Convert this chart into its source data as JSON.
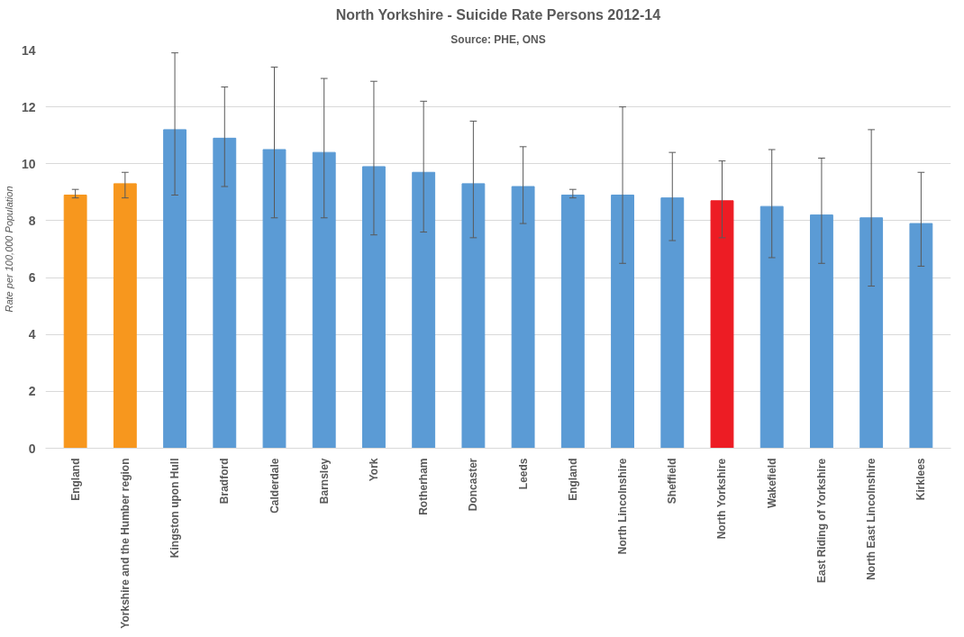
{
  "chart_data": {
    "type": "bar",
    "title": "North Yorkshire - Suicide Rate Persons 2012-14",
    "subtitle": "Source: PHE, ONS",
    "ylabel": "Rate per 100,000 Population",
    "categories": [
      "England",
      "Yorkshire and the Humber region",
      "Kingston upon Hull",
      "Bradford",
      "Calderdale",
      "Barnsley",
      "York",
      "Rotherham",
      "Doncaster",
      "Leeds",
      "England",
      "North Lincolnshire",
      "Sheffield",
      "North Yorkshire",
      "Wakefield",
      "East Riding of Yorkshire",
      "North East Lincolnshire",
      "Kirklees"
    ],
    "values": [
      8.9,
      9.3,
      11.2,
      10.9,
      10.5,
      10.4,
      9.9,
      9.7,
      9.3,
      9.2,
      8.9,
      8.9,
      8.8,
      8.7,
      8.5,
      8.2,
      8.1,
      7.9
    ],
    "colors": [
      "#f7971e",
      "#f7971e",
      "#5b9bd5",
      "#5b9bd5",
      "#5b9bd5",
      "#5b9bd5",
      "#5b9bd5",
      "#5b9bd5",
      "#5b9bd5",
      "#5b9bd5",
      "#5b9bd5",
      "#5b9bd5",
      "#5b9bd5",
      "#ed1c24",
      "#5b9bd5",
      "#5b9bd5",
      "#5b9bd5",
      "#5b9bd5"
    ],
    "errors": [
      [
        8.8,
        9.1
      ],
      [
        8.8,
        9.7
      ],
      [
        8.9,
        13.9
      ],
      [
        9.2,
        12.7
      ],
      [
        8.1,
        13.4
      ],
      [
        8.1,
        13.0
      ],
      [
        7.5,
        12.9
      ],
      [
        7.6,
        12.2
      ],
      [
        7.4,
        11.5
      ],
      [
        7.9,
        10.6
      ],
      [
        8.8,
        9.1
      ],
      [
        6.5,
        12.0
      ],
      [
        7.3,
        10.4
      ],
      [
        7.4,
        10.1
      ],
      [
        6.7,
        10.5
      ],
      [
        6.5,
        10.2
      ],
      [
        5.7,
        11.2
      ],
      [
        6.4,
        9.7
      ]
    ],
    "ylim": [
      0,
      14
    ],
    "yticks": [
      0,
      2,
      4,
      6,
      8,
      10,
      12,
      14
    ],
    "grid": "y"
  }
}
